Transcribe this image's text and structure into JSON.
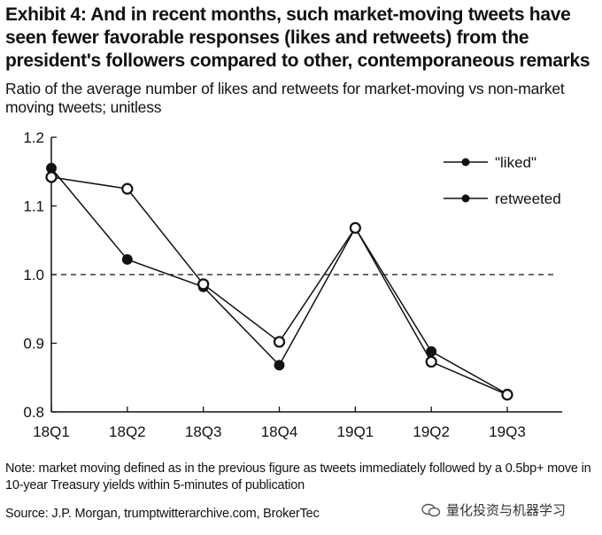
{
  "header": {
    "title": "Exhibit 4: And in recent months, such market-moving tweets have seen fewer favorable responses (likes and retweets) from the president's followers compared to other, contemporaneous remarks",
    "subtitle": "Ratio of the average number of likes and retweets for market-moving vs non-market moving tweets; unitless"
  },
  "footer": {
    "note": "Note: market moving defined as in the previous figure as tweets immediately followed by a 0.5bp+ move in 10-year Treasury yields within 5-minutes of publication",
    "source": "Source: J.P. Morgan, trumptwitterarchive.com, BrokerTec",
    "watermark": "量化投资与机器学习"
  },
  "chart_data": {
    "type": "line",
    "categories": [
      "18Q1",
      "18Q2",
      "18Q3",
      "18Q4",
      "19Q1",
      "19Q2",
      "19Q3"
    ],
    "yticks": [
      "0.8",
      "0.9",
      "1.0",
      "1.1",
      "1.2"
    ],
    "ylim": [
      0.8,
      1.2
    ],
    "reference_line": 1.0,
    "legend_position": "top-right",
    "series": [
      {
        "name": "\"liked\"",
        "marker": "filled",
        "values": [
          1.155,
          1.022,
          0.982,
          0.868,
          1.068,
          0.888,
          0.826
        ]
      },
      {
        "name": "retweeted",
        "marker": "open",
        "values": [
          1.142,
          1.125,
          0.986,
          0.902,
          1.068,
          0.873,
          0.825
        ]
      }
    ],
    "colors": {
      "line": "#111111",
      "marker_fill_open": "#ffffff"
    }
  }
}
